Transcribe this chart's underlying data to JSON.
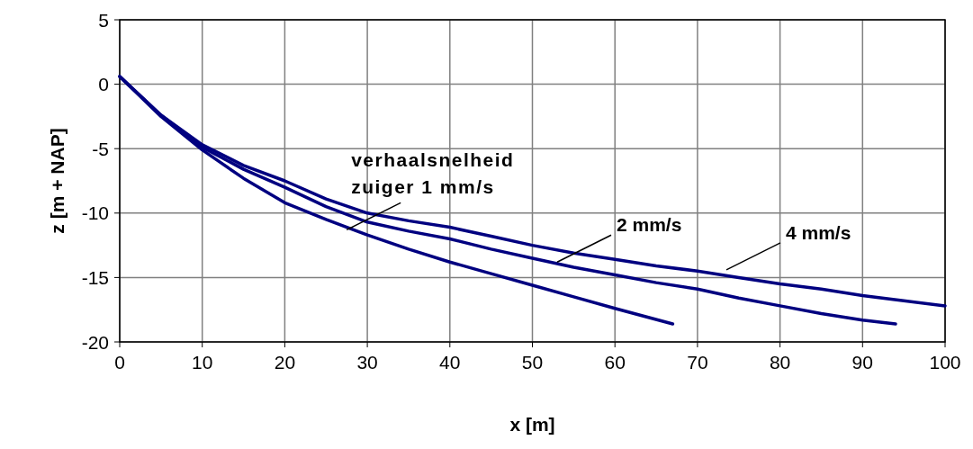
{
  "chart_data": {
    "type": "line",
    "xlabel": "x [m]",
    "ylabel": "z [m + NAP]",
    "xlim": [
      0,
      100
    ],
    "xticks": [
      0,
      10,
      20,
      30,
      40,
      50,
      60,
      70,
      80,
      90,
      100
    ],
    "ylim": [
      -20,
      5
    ],
    "yticks": [
      -20,
      -15,
      -10,
      -5,
      0,
      5
    ],
    "grid": true,
    "marker": "none",
    "line_style": "solid",
    "series": [
      {
        "color": "#000080",
        "x": [
          0,
          5,
          10,
          15,
          20,
          25,
          30,
          35,
          40,
          45,
          50,
          55,
          60,
          67
        ],
        "values": [
          0.6,
          -2.5,
          -5.1,
          -7.3,
          -9.2,
          -10.5,
          -11.7,
          -12.8,
          -13.8,
          -14.7,
          -15.6,
          -16.5,
          -17.4,
          -18.6
        ]
      },
      {
        "color": "#000080",
        "x": [
          0,
          5,
          10,
          15,
          20,
          25,
          30,
          35,
          40,
          45,
          50,
          55,
          60,
          65,
          70,
          75,
          80,
          85,
          90,
          94
        ],
        "values": [
          0.6,
          -2.4,
          -4.9,
          -6.6,
          -8.0,
          -9.5,
          -10.7,
          -11.4,
          -12.0,
          -12.8,
          -13.5,
          -14.2,
          -14.8,
          -15.4,
          -15.9,
          -16.6,
          -17.2,
          -17.8,
          -18.3,
          -18.6
        ]
      },
      {
        "color": "#000080",
        "x": [
          0,
          5,
          10,
          15,
          20,
          25,
          30,
          35,
          40,
          45,
          50,
          55,
          60,
          65,
          70,
          75,
          80,
          85,
          90,
          95,
          100
        ],
        "values": [
          0.6,
          -2.4,
          -4.7,
          -6.3,
          -7.5,
          -8.9,
          -10.0,
          -10.6,
          -11.1,
          -11.8,
          -12.5,
          -13.1,
          -13.6,
          -14.1,
          -14.5,
          -15.0,
          -15.5,
          -15.9,
          -16.4,
          -16.8,
          -17.2
        ]
      }
    ],
    "annotations": [
      {
        "text": "verhaalsnelheid\nzuiger 1 mm/s",
        "x": 27.5,
        "y": -11.3
      },
      {
        "text": "2 mm/s",
        "x": 53,
        "y": -13.8
      },
      {
        "text": "4 mm/s",
        "x": 73.5,
        "y": -14.4
      }
    ]
  }
}
